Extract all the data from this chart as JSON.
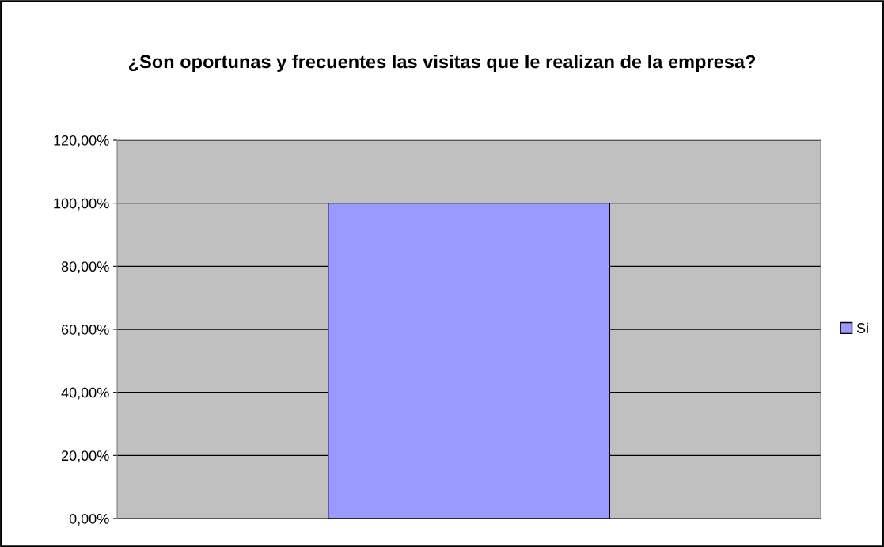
{
  "chart_data": {
    "type": "bar",
    "title": "¿Son oportunas y frecuentes las visitas que le realizan de la empresa?",
    "categories": [
      null
    ],
    "series": [
      {
        "name": "Si",
        "color": "#9999ff",
        "values": [
          100
        ]
      }
    ],
    "ylim": [
      0,
      120
    ],
    "yticks": [
      {
        "value": 0,
        "label": "0,00%"
      },
      {
        "value": 20,
        "label": "20,00%"
      },
      {
        "value": 40,
        "label": "40,00%"
      },
      {
        "value": 60,
        "label": "60,00%"
      },
      {
        "value": 80,
        "label": "80,00%"
      },
      {
        "value": 100,
        "label": "100,00%"
      },
      {
        "value": 120,
        "label": "120,00%"
      }
    ],
    "grid": "y",
    "legend": "right"
  }
}
